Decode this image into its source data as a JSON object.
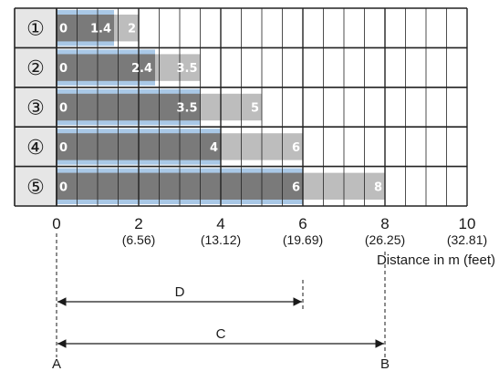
{
  "chart_data": {
    "type": "bar",
    "categories": [
      "①",
      "②",
      "③",
      "④",
      "⑤"
    ],
    "series": [
      {
        "start": [
          0,
          0,
          0,
          0,
          0
        ],
        "values": [
          1.4,
          2.4,
          3.5,
          4,
          6
        ]
      },
      {
        "start": [
          1.4,
          2.4,
          3.5,
          4,
          6
        ],
        "values": [
          2,
          3.5,
          5,
          6,
          8
        ]
      }
    ],
    "bar_labels": [
      [
        "0",
        "1.4",
        "2"
      ],
      [
        "0",
        "2.4",
        "3.5"
      ],
      [
        "0",
        "3.5",
        "5"
      ],
      [
        "0",
        "4",
        "6"
      ],
      [
        "0",
        "6",
        "8"
      ]
    ],
    "xlim": [
      0,
      10
    ],
    "x_ticks": [
      0,
      2,
      4,
      6,
      8,
      10
    ],
    "x_tick_labels": [
      "0",
      "2",
      "4",
      "6",
      "8",
      "10"
    ],
    "x_tick_sublabels": [
      "",
      "(6.56)",
      "(13.12)",
      "(19.69)",
      "(26.25)",
      "(32.81)"
    ],
    "xlabel": "Distance in m (feet)",
    "grid": true,
    "colors": {
      "series_dark": "#7a7a7a",
      "series_light": "#bdbdbd",
      "underlay_blue": "#a9c8e6",
      "label_cell": "#e6e6e6",
      "grid": "#222222"
    },
    "dimensions": [
      {
        "label": "D",
        "from": 0,
        "to": 6
      },
      {
        "label": "C",
        "from": 0,
        "to": 8
      }
    ],
    "points": [
      {
        "label": "A",
        "x": 0
      },
      {
        "label": "B",
        "x": 8
      }
    ]
  }
}
